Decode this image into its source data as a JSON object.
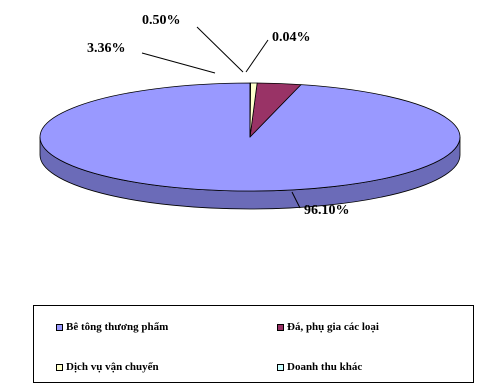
{
  "chart_data": {
    "type": "pie",
    "title": "",
    "categories": [
      "Bê tông thương phẩm",
      "Đá, phụ gia các loại",
      "Dịch vụ vận chuyển",
      "Doanh thu khác"
    ],
    "values": [
      96.1,
      3.36,
      0.5,
      0.04
    ],
    "data_labels": [
      "96.10%",
      "3.36%",
      "0.50%",
      "0.04%"
    ],
    "colors": [
      "#9999FF",
      "#993366",
      "#FFFFCC",
      "#CCFFFF"
    ],
    "style": "3d",
    "legend": "bottom"
  }
}
